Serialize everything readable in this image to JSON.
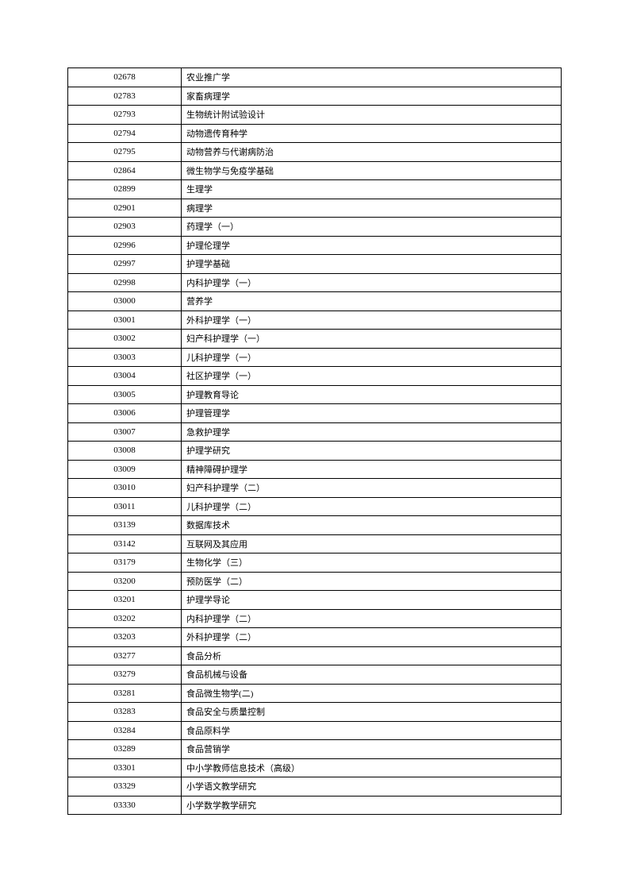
{
  "table": {
    "border_color": "#000000",
    "background_color": "#ffffff",
    "text_color": "#000000",
    "font_size": 11,
    "row_height": 23.5,
    "columns": [
      {
        "key": "code",
        "width": "23%",
        "align": "center"
      },
      {
        "key": "name",
        "width": "77%",
        "align": "left"
      }
    ],
    "rows": [
      {
        "code": "02678",
        "name": "农业推广学"
      },
      {
        "code": "02783",
        "name": "家畜病理学"
      },
      {
        "code": "02793",
        "name": "生物统计附试验设计"
      },
      {
        "code": "02794",
        "name": "动物遗传育种学"
      },
      {
        "code": "02795",
        "name": "动物营养与代谢病防治"
      },
      {
        "code": "02864",
        "name": "微生物学与免疫学基础"
      },
      {
        "code": "02899",
        "name": "生理学"
      },
      {
        "code": "02901",
        "name": "病理学"
      },
      {
        "code": "02903",
        "name": "药理学（一）"
      },
      {
        "code": "02996",
        "name": "护理伦理学"
      },
      {
        "code": "02997",
        "name": "护理学基础"
      },
      {
        "code": "02998",
        "name": "内科护理学（一）"
      },
      {
        "code": "03000",
        "name": "营养学"
      },
      {
        "code": "03001",
        "name": "外科护理学（一）"
      },
      {
        "code": "03002",
        "name": "妇产科护理学（一）"
      },
      {
        "code": "03003",
        "name": "儿科护理学（一）"
      },
      {
        "code": "03004",
        "name": "社区护理学（一）"
      },
      {
        "code": "03005",
        "name": "护理教育导论"
      },
      {
        "code": "03006",
        "name": "护理管理学"
      },
      {
        "code": "03007",
        "name": "急救护理学"
      },
      {
        "code": "03008",
        "name": "护理学研究"
      },
      {
        "code": "03009",
        "name": "精神障碍护理学"
      },
      {
        "code": "03010",
        "name": "妇产科护理学（二）"
      },
      {
        "code": "03011",
        "name": "儿科护理学（二）"
      },
      {
        "code": "03139",
        "name": "数据库技术"
      },
      {
        "code": "03142",
        "name": "互联网及其应用"
      },
      {
        "code": "03179",
        "name": "生物化学（三）"
      },
      {
        "code": "03200",
        "name": "预防医学（二）"
      },
      {
        "code": "03201",
        "name": "护理学导论"
      },
      {
        "code": "03202",
        "name": "内科护理学（二）"
      },
      {
        "code": "03203",
        "name": "外科护理学（二）"
      },
      {
        "code": "03277",
        "name": "食品分析"
      },
      {
        "code": "03279",
        "name": "食品机械与设备"
      },
      {
        "code": "03281",
        "name": "食品微生物学(二)"
      },
      {
        "code": "03283",
        "name": "食品安全与质量控制"
      },
      {
        "code": "03284",
        "name": "食品原料学"
      },
      {
        "code": "03289",
        "name": "食品营销学"
      },
      {
        "code": "03301",
        "name": "中小学教师信息技术（高级）"
      },
      {
        "code": "03329",
        "name": "小学语文教学研究"
      },
      {
        "code": "03330",
        "name": "小学数学教学研究"
      }
    ]
  }
}
